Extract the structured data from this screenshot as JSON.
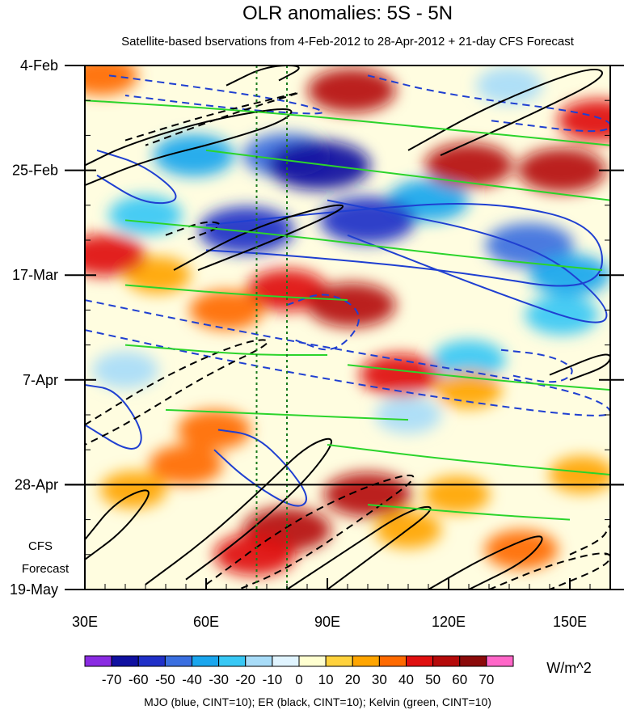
{
  "chart_data": {
    "type": "heatmap",
    "title": "OLR anomalies: 5S - 5N",
    "subtitle": "Satellite-based bservations from 4-Feb-2012 to 28-Apr-2012 + 21-day CFS Forecast",
    "x_axis": {
      "range": [
        30,
        160
      ],
      "ticks": [
        30,
        60,
        90,
        120,
        150
      ],
      "tick_labels": [
        "30E",
        "60E",
        "90E",
        "120E",
        "150E"
      ]
    },
    "y_axis": {
      "range_days": [
        0,
        105
      ],
      "ticks_days": [
        0,
        21,
        42,
        63,
        84,
        105
      ],
      "tick_labels": [
        "4-Feb",
        "25-Feb",
        "17-Mar",
        "7-Apr",
        "28-Apr",
        "19-May"
      ],
      "minor_tick_step_days": 7
    },
    "forecast": {
      "start_day": 84,
      "label_line1": "CFS",
      "label_line2": "Forecast"
    },
    "reference_lines_lon": [
      72.5,
      80
    ],
    "colorbar": {
      "levels": [
        -70,
        -60,
        -50,
        -40,
        -30,
        -20,
        -10,
        0,
        10,
        20,
        30,
        40,
        50,
        60,
        70
      ],
      "label_text": [
        "-70",
        "-60",
        "-50",
        "-40",
        "-30",
        "-20",
        "-10",
        "0",
        "10",
        "20",
        "30",
        "40",
        "50",
        "60",
        "70"
      ],
      "colors": [
        "#8a2be2",
        "#1010a0",
        "#2030c8",
        "#3a6fe0",
        "#1aa6ee",
        "#38c8f5",
        "#a8dcf8",
        "#e0f4ff",
        "#ffffd0",
        "#ffd23c",
        "#ffa500",
        "#ff6a00",
        "#e01010",
        "#b50a0a",
        "#8b0a0a",
        "#ff66c8"
      ],
      "units": "W/m^2"
    },
    "anomaly_blobs": [
      {
        "lon": 57,
        "day": 18,
        "value": -40
      },
      {
        "lon": 80,
        "day": 18,
        "value": -50
      },
      {
        "lon": 88,
        "day": 20,
        "value": -70
      },
      {
        "lon": 115,
        "day": 27,
        "value": -40
      },
      {
        "lon": 140,
        "day": 36,
        "value": -50
      },
      {
        "lon": 70,
        "day": 33,
        "value": -60
      },
      {
        "lon": 100,
        "day": 31,
        "value": -60
      },
      {
        "lon": 150,
        "day": 42,
        "value": -40
      },
      {
        "lon": 45,
        "day": 30,
        "value": -30
      },
      {
        "lon": 125,
        "day": 59,
        "value": -30
      },
      {
        "lon": 148,
        "day": 50,
        "value": -30
      },
      {
        "lon": 110,
        "day": 70,
        "value": -20
      },
      {
        "lon": 40,
        "day": 61,
        "value": -20
      },
      {
        "lon": 135,
        "day": 4,
        "value": -20
      },
      {
        "lon": 125,
        "day": 20,
        "value": 50
      },
      {
        "lon": 148,
        "day": 21,
        "value": 50
      },
      {
        "lon": 157,
        "day": 11,
        "value": 40
      },
      {
        "lon": 96,
        "day": 5,
        "value": 50
      },
      {
        "lon": 80,
        "day": 45,
        "value": 40
      },
      {
        "lon": 96,
        "day": 48,
        "value": 50
      },
      {
        "lon": 65,
        "day": 49,
        "value": 30
      },
      {
        "lon": 48,
        "day": 42,
        "value": 20
      },
      {
        "lon": 108,
        "day": 62,
        "value": 40
      },
      {
        "lon": 125,
        "day": 65,
        "value": 20
      },
      {
        "lon": 62,
        "day": 73,
        "value": 30
      },
      {
        "lon": 55,
        "day": 80,
        "value": 30
      },
      {
        "lon": 42,
        "day": 85,
        "value": 20
      },
      {
        "lon": 80,
        "day": 93,
        "value": 50
      },
      {
        "lon": 72,
        "day": 98,
        "value": 40
      },
      {
        "lon": 100,
        "day": 86,
        "value": 50
      },
      {
        "lon": 110,
        "day": 93,
        "value": 20
      },
      {
        "lon": 138,
        "day": 97,
        "value": 30
      },
      {
        "lon": 153,
        "day": 82,
        "value": 20
      },
      {
        "lon": 122,
        "day": 86,
        "value": 20
      },
      {
        "lon": 34,
        "day": 2,
        "value": 30
      },
      {
        "lon": 35,
        "day": 38,
        "value": 40
      }
    ],
    "contours": [
      {
        "kind": "MJO",
        "color": "#1f3fd1",
        "sign": "pos",
        "path": [
          [
            33,
            17
          ],
          [
            45,
            20
          ],
          [
            55,
            27
          ],
          [
            45,
            28
          ],
          [
            33,
            22
          ]
        ]
      },
      {
        "kind": "MJO",
        "color": "#1f3fd1",
        "sign": "pos",
        "path": [
          [
            60,
            32
          ],
          [
            95,
            29
          ],
          [
            130,
            27
          ],
          [
            158,
            32
          ],
          [
            158,
            46
          ],
          [
            120,
            41
          ],
          [
            80,
            38
          ],
          [
            60,
            37
          ]
        ]
      },
      {
        "kind": "MJO",
        "color": "#1f3fd1",
        "sign": "pos",
        "path": [
          [
            90,
            27
          ],
          [
            140,
            35
          ],
          [
            160,
            48
          ],
          [
            158,
            53
          ],
          [
            130,
            45
          ],
          [
            95,
            34
          ]
        ]
      },
      {
        "kind": "MJO",
        "color": "#1f3fd1",
        "sign": "pos",
        "path": [
          [
            30,
            64
          ],
          [
            38,
            65
          ],
          [
            45,
            74
          ],
          [
            42,
            78
          ],
          [
            30,
            72
          ]
        ]
      },
      {
        "kind": "MJO",
        "color": "#1f3fd1",
        "sign": "pos",
        "path": [
          [
            63,
            73
          ],
          [
            72,
            74
          ],
          [
            80,
            80
          ],
          [
            86,
            87
          ],
          [
            82,
            89
          ],
          [
            70,
            83
          ],
          [
            62,
            77
          ]
        ]
      },
      {
        "kind": "MJO",
        "color": "#1f3fd1",
        "sign": "neg",
        "path": [
          [
            36,
            2
          ],
          [
            55,
            4
          ],
          [
            80,
            7
          ],
          [
            93,
            10
          ],
          [
            70,
            9
          ],
          [
            40,
            6
          ]
        ]
      },
      {
        "kind": "MJO",
        "color": "#1f3fd1",
        "sign": "neg",
        "path": [
          [
            80,
            48
          ],
          [
            90,
            45
          ],
          [
            100,
            50
          ],
          [
            92,
            58
          ],
          [
            82,
            55
          ]
        ]
      },
      {
        "kind": "MJO",
        "color": "#1f3fd1",
        "sign": "neg",
        "path": [
          [
            30,
            47
          ],
          [
            60,
            52
          ],
          [
            100,
            58
          ],
          [
            145,
            64
          ],
          [
            160,
            68
          ],
          [
            160,
            71
          ],
          [
            120,
            67
          ],
          [
            70,
            60
          ],
          [
            30,
            53
          ]
        ]
      },
      {
        "kind": "MJO",
        "color": "#1f3fd1",
        "sign": "neg",
        "path": [
          [
            133,
            57
          ],
          [
            145,
            58
          ],
          [
            152,
            61
          ],
          [
            147,
            64
          ],
          [
            135,
            62
          ]
        ]
      },
      {
        "kind": "MJO",
        "color": "#1f3fd1",
        "sign": "neg",
        "path": [
          [
            100,
            2
          ],
          [
            120,
            6
          ],
          [
            160,
            10
          ],
          [
            160,
            14
          ],
          [
            130,
            11
          ]
        ]
      },
      {
        "kind": "ER",
        "color": "#000000",
        "sign": "pos",
        "path": [
          [
            30,
            24
          ],
          [
            45,
            19
          ],
          [
            65,
            15
          ],
          [
            80,
            11
          ],
          [
            82,
            8
          ],
          [
            60,
            11
          ],
          [
            40,
            16
          ],
          [
            30,
            20
          ]
        ]
      },
      {
        "kind": "ER",
        "color": "#000000",
        "sign": "pos",
        "path": [
          [
            65,
            4
          ],
          [
            75,
            0
          ],
          [
            85,
            0
          ],
          [
            78,
            3
          ]
        ]
      },
      {
        "kind": "ER",
        "color": "#000000",
        "sign": "pos",
        "path": [
          [
            110,
            17
          ],
          [
            130,
            8
          ],
          [
            155,
            0
          ],
          [
            160,
            2
          ],
          [
            140,
            10
          ],
          [
            118,
            18
          ]
        ]
      },
      {
        "kind": "ER",
        "color": "#000000",
        "sign": "pos",
        "path": [
          [
            52,
            41
          ],
          [
            70,
            33
          ],
          [
            90,
            28
          ],
          [
            96,
            28
          ],
          [
            80,
            34
          ],
          [
            58,
            41
          ]
        ]
      },
      {
        "kind": "ER",
        "color": "#000000",
        "sign": "pos",
        "path": [
          [
            145,
            62
          ],
          [
            160,
            57
          ],
          [
            160,
            60
          ],
          [
            150,
            63
          ]
        ]
      },
      {
        "kind": "ER",
        "color": "#000000",
        "sign": "pos",
        "path": [
          [
            30,
            95
          ],
          [
            38,
            87
          ],
          [
            48,
            84
          ],
          [
            40,
            93
          ],
          [
            30,
            99
          ]
        ]
      },
      {
        "kind": "ER",
        "color": "#000000",
        "sign": "pos",
        "path": [
          [
            45,
            104
          ],
          [
            60,
            95
          ],
          [
            75,
            84
          ],
          [
            85,
            76
          ],
          [
            93,
            74
          ],
          [
            85,
            83
          ],
          [
            70,
            94
          ],
          [
            55,
            103
          ]
        ]
      },
      {
        "kind": "ER",
        "color": "#000000",
        "sign": "pos",
        "path": [
          [
            80,
            105
          ],
          [
            95,
            97
          ],
          [
            110,
            89
          ],
          [
            118,
            88
          ],
          [
            105,
            96
          ],
          [
            90,
            105
          ]
        ]
      },
      {
        "kind": "ER",
        "color": "#000000",
        "sign": "pos",
        "path": [
          [
            115,
            105
          ],
          [
            130,
            98
          ],
          [
            145,
            93
          ],
          [
            140,
            99
          ],
          [
            125,
            105
          ]
        ]
      },
      {
        "kind": "ER",
        "color": "#000000",
        "sign": "neg",
        "path": [
          [
            40,
            15
          ],
          [
            60,
            10
          ],
          [
            80,
            6
          ],
          [
            85,
            5
          ],
          [
            65,
            10
          ],
          [
            45,
            16
          ]
        ]
      },
      {
        "kind": "ER",
        "color": "#000000",
        "sign": "neg",
        "path": [
          [
            50,
            34
          ],
          [
            60,
            31
          ],
          [
            65,
            32
          ],
          [
            55,
            35
          ]
        ]
      },
      {
        "kind": "ER",
        "color": "#000000",
        "sign": "neg",
        "path": [
          [
            30,
            72
          ],
          [
            50,
            62
          ],
          [
            70,
            55
          ],
          [
            78,
            55
          ],
          [
            60,
            62
          ],
          [
            40,
            72
          ],
          [
            30,
            76
          ]
        ]
      },
      {
        "kind": "ER",
        "color": "#000000",
        "sign": "neg",
        "path": [
          [
            60,
            104
          ],
          [
            80,
            92
          ],
          [
            100,
            84
          ],
          [
            115,
            81
          ],
          [
            100,
            90
          ],
          [
            80,
            101
          ],
          [
            65,
            106
          ]
        ]
      },
      {
        "kind": "ER",
        "color": "#000000",
        "sign": "neg",
        "path": [
          [
            130,
            105
          ],
          [
            145,
            100
          ],
          [
            160,
            97
          ],
          [
            160,
            100
          ],
          [
            145,
            105
          ]
        ]
      },
      {
        "kind": "ER",
        "color": "#000000",
        "sign": "neg",
        "path": [
          [
            150,
            98
          ],
          [
            158,
            95
          ],
          [
            160,
            92
          ]
        ]
      },
      {
        "kind": "Kelvin",
        "color": "#2bd42b",
        "sign": "pos",
        "path": [
          [
            30,
            7
          ],
          [
            70,
            9
          ],
          [
            110,
            12
          ],
          [
            160,
            16
          ]
        ]
      },
      {
        "kind": "Kelvin",
        "color": "#2bd42b",
        "sign": "pos",
        "path": [
          [
            60,
            17
          ],
          [
            100,
            21
          ],
          [
            140,
            25
          ],
          [
            160,
            27
          ]
        ]
      },
      {
        "kind": "Kelvin",
        "color": "#2bd42b",
        "sign": "pos",
        "path": [
          [
            40,
            31
          ],
          [
            80,
            34
          ],
          [
            120,
            38
          ],
          [
            158,
            41
          ]
        ]
      },
      {
        "kind": "Kelvin",
        "color": "#2bd42b",
        "sign": "pos",
        "path": [
          [
            40,
            56
          ],
          [
            70,
            58
          ],
          [
            90,
            58
          ]
        ]
      },
      {
        "kind": "Kelvin",
        "color": "#2bd42b",
        "sign": "pos",
        "path": [
          [
            95,
            60
          ],
          [
            130,
            63
          ],
          [
            160,
            65
          ]
        ]
      },
      {
        "kind": "Kelvin",
        "color": "#2bd42b",
        "sign": "pos",
        "path": [
          [
            50,
            69
          ],
          [
            80,
            70
          ],
          [
            110,
            71
          ]
        ]
      },
      {
        "kind": "Kelvin",
        "color": "#2bd42b",
        "sign": "pos",
        "path": [
          [
            90,
            76
          ],
          [
            120,
            79
          ],
          [
            160,
            82
          ]
        ]
      },
      {
        "kind": "Kelvin",
        "color": "#2bd42b",
        "sign": "pos",
        "path": [
          [
            100,
            88
          ],
          [
            130,
            90
          ],
          [
            150,
            91
          ]
        ]
      },
      {
        "kind": "Kelvin",
        "color": "#2bd42b",
        "sign": "pos",
        "path": [
          [
            40,
            44
          ],
          [
            70,
            46
          ],
          [
            95,
            47
          ]
        ]
      }
    ],
    "footer": "MJO (blue, CINT=10); ER (black, CINT=10); Kelvin (green, CINT=10)"
  }
}
